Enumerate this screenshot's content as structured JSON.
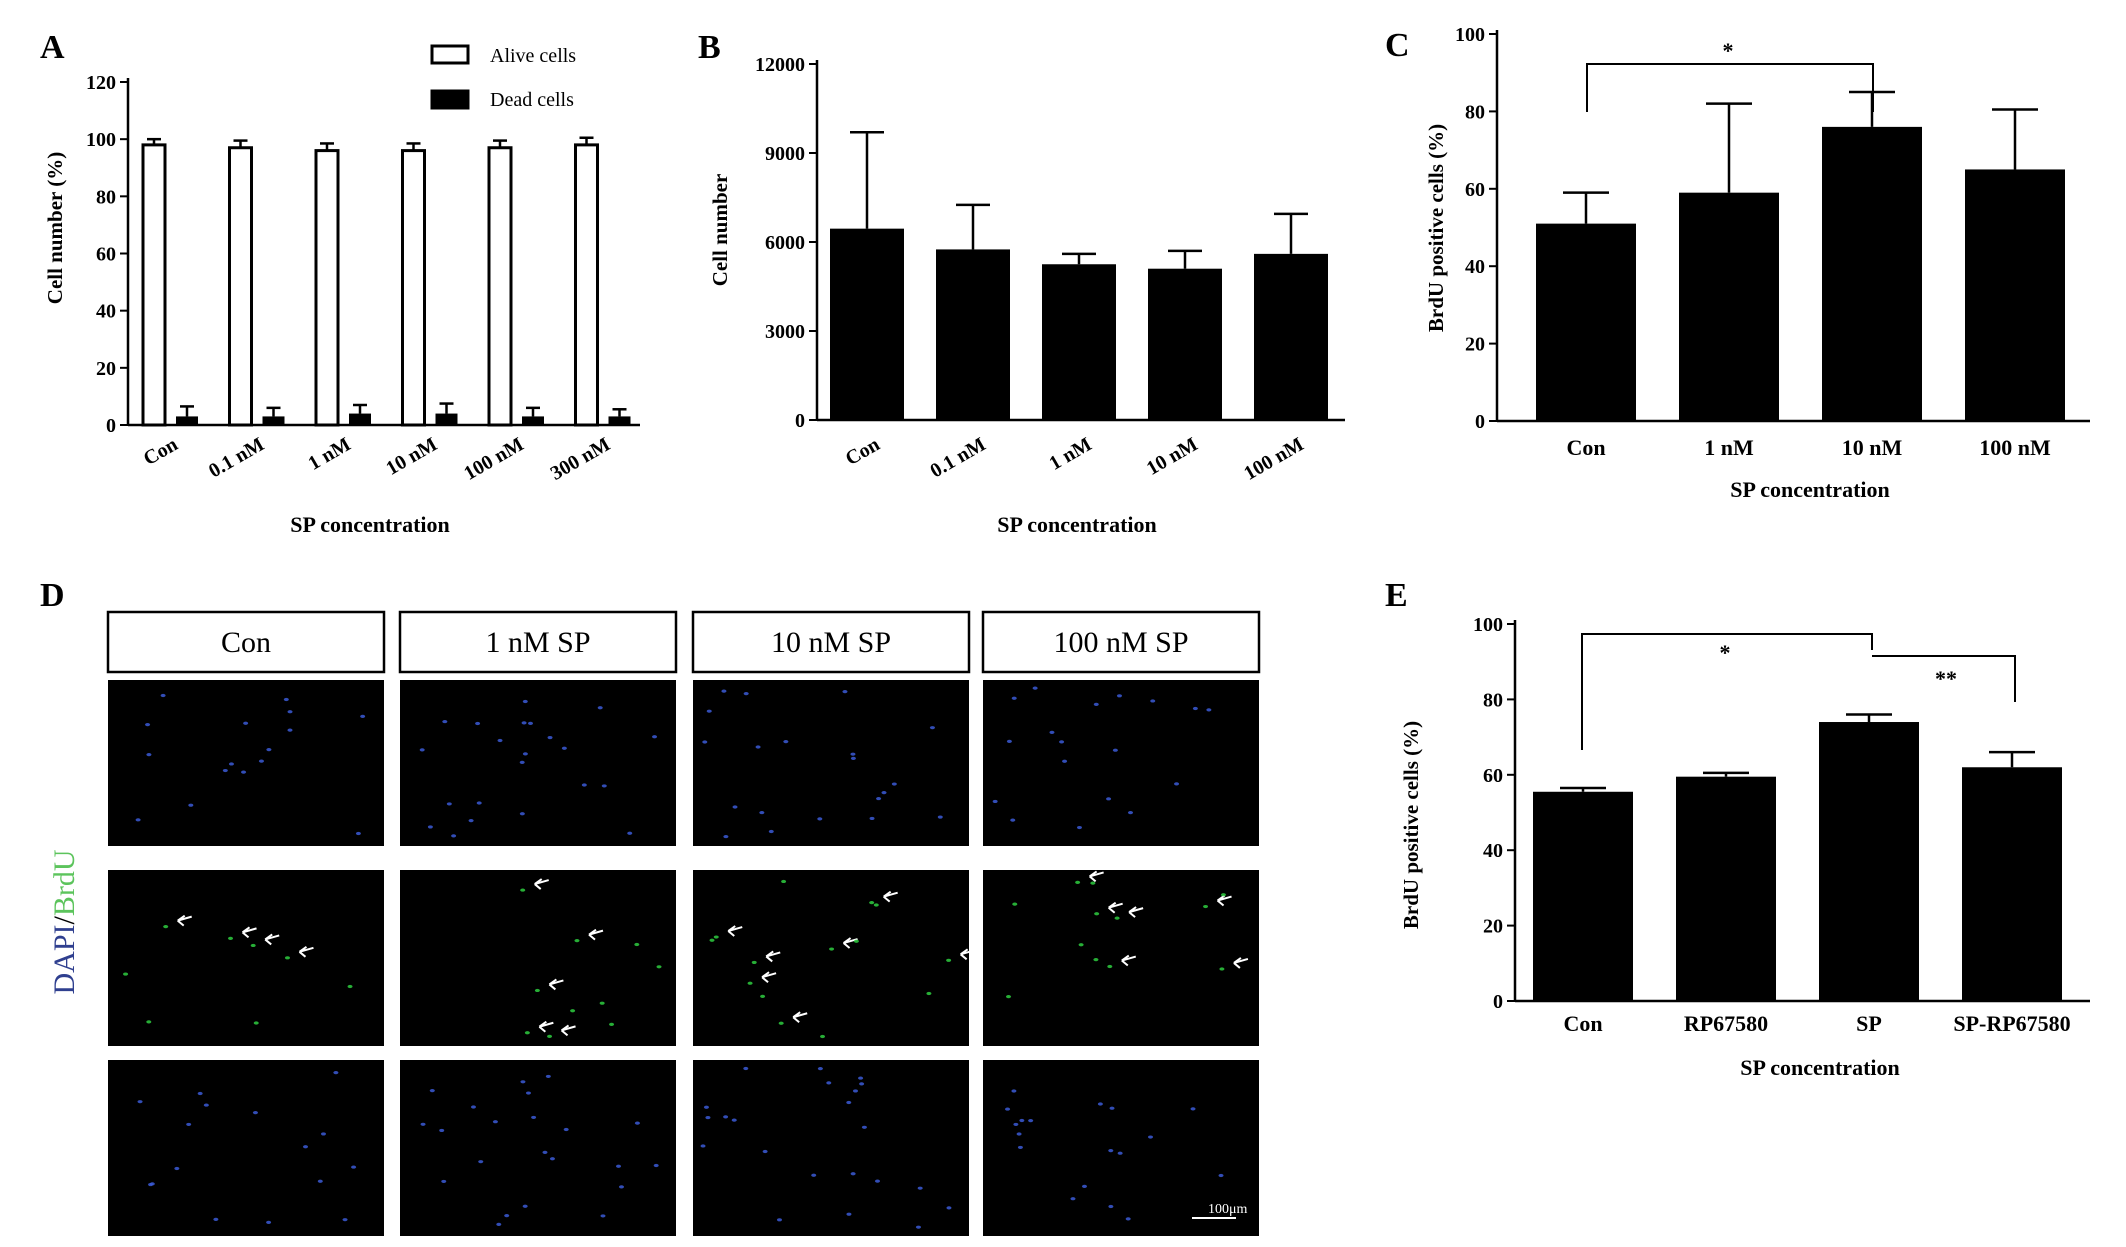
{
  "panels": {
    "A": {
      "letter": "A",
      "ylabel": "Cell number (%)",
      "xlabel": "SP concentration",
      "legend": [
        "Alive cells",
        "Dead cells"
      ],
      "yticks": [
        0,
        20,
        40,
        60,
        80,
        100,
        120
      ],
      "categories": [
        "Con",
        "0.1 nM",
        "1 nM",
        "10 nM",
        "100 nM",
        "300 nM"
      ]
    },
    "B": {
      "letter": "B",
      "ylabel": "Cell number",
      "xlabel": "SP concentration",
      "yticks": [
        0,
        3000,
        6000,
        9000,
        12000
      ],
      "categories": [
        "Con",
        "0.1 nM",
        "1 nM",
        "10 nM",
        "100 nM"
      ]
    },
    "C": {
      "letter": "C",
      "ylabel": "BrdU positive  cells (%)",
      "xlabel": "SP concentration",
      "yticks": [
        0,
        20,
        40,
        60,
        80,
        100
      ],
      "categories": [
        "Con",
        "1 nM",
        "10 nM",
        "100 nM"
      ],
      "sig": [
        "*"
      ]
    },
    "D": {
      "letter": "D",
      "columns": [
        "Con",
        "1 nM SP",
        "10 nM SP",
        "100 nM SP"
      ],
      "side_label_dapi": "DAPI",
      "side_label_slash": "/",
      "side_label_brdu": "BrdU",
      "scale_bar": "100μm"
    },
    "E": {
      "letter": "E",
      "ylabel": "BrdU positive cells (%)",
      "xlabel": "SP concentration",
      "yticks": [
        0,
        20,
        40,
        60,
        80,
        100
      ],
      "categories": [
        "Con",
        "RP67580",
        "SP",
        "SP-RP67580"
      ],
      "sig": [
        "*",
        "**"
      ]
    }
  },
  "colors": {
    "bar": "#000000",
    "dapi": "#3b5bd6",
    "brdu": "#2ecc40",
    "label_dapi": "#2f3f8f",
    "label_brdu": "#5cc45c"
  },
  "chart_data": [
    {
      "panel": "A",
      "type": "bar",
      "categories": [
        "Con",
        "0.1 nM",
        "1 nM",
        "10 nM",
        "100 nM",
        "300 nM"
      ],
      "series": [
        {
          "name": "Alive cells",
          "values": [
            98,
            97,
            96,
            96,
            97,
            98
          ],
          "errors": [
            2,
            2.5,
            2.5,
            2.5,
            2.5,
            2.5
          ]
        },
        {
          "name": "Dead cells",
          "values": [
            3,
            3,
            4,
            4,
            3,
            3
          ],
          "errors": [
            3.5,
            3,
            3,
            3.5,
            3,
            2.5
          ]
        }
      ],
      "ylabel": "Cell number (%)",
      "xlabel": "SP concentration",
      "ylim": [
        0,
        120
      ],
      "legend": "top-right"
    },
    {
      "panel": "B",
      "type": "bar",
      "categories": [
        "Con",
        "0.1 nM",
        "1 nM",
        "10 nM",
        "100 nM"
      ],
      "values": [
        6450,
        5750,
        5250,
        5100,
        5600
      ],
      "errors": [
        3250,
        1500,
        350,
        600,
        1350
      ],
      "ylabel": "Cell number",
      "xlabel": "SP concentration",
      "ylim": [
        0,
        12000
      ]
    },
    {
      "panel": "C",
      "type": "bar",
      "categories": [
        "Con",
        "1 nM",
        "10 nM",
        "100 nM"
      ],
      "values": [
        51,
        59,
        76,
        65
      ],
      "errors": [
        8,
        23,
        9,
        15.5
      ],
      "ylabel": "BrdU positive  cells (%)",
      "xlabel": "SP concentration",
      "ylim": [
        0,
        100
      ]
    },
    {
      "panel": "E",
      "type": "bar",
      "categories": [
        "Con",
        "RP67580",
        "SP",
        "SP-RP67580"
      ],
      "values": [
        55.5,
        59.5,
        74,
        62
      ],
      "errors": [
        1,
        1,
        2,
        4
      ],
      "ylabel": "BrdU positive cells (%)",
      "xlabel": "SP concentration",
      "ylim": [
        0,
        100
      ]
    }
  ]
}
